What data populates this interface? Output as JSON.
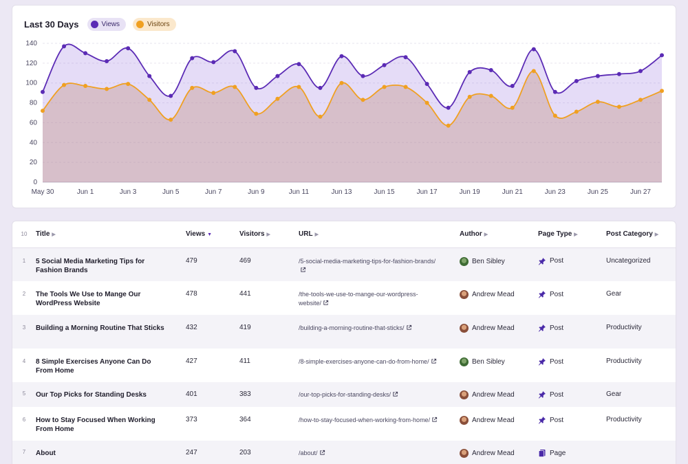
{
  "chart": {
    "title": "Last 30 Days",
    "legend": [
      {
        "label": "Views",
        "color": "#5b2bb5"
      },
      {
        "label": "Visitors",
        "color": "#f0a021"
      }
    ]
  },
  "chart_data": {
    "type": "area",
    "title": "Last 30 Days",
    "x": [
      "May 30",
      "May 31",
      "Jun 1",
      "Jun 2",
      "Jun 3",
      "Jun 4",
      "Jun 5",
      "Jun 6",
      "Jun 7",
      "Jun 8",
      "Jun 9",
      "Jun 10",
      "Jun 11",
      "Jun 12",
      "Jun 13",
      "Jun 14",
      "Jun 15",
      "Jun 16",
      "Jun 17",
      "Jun 18",
      "Jun 19",
      "Jun 20",
      "Jun 21",
      "Jun 22",
      "Jun 23",
      "Jun 24",
      "Jun 25",
      "Jun 26",
      "Jun 27",
      "Jun 28"
    ],
    "x_tick_labels": [
      "May 30",
      "Jun 1",
      "Jun 3",
      "Jun 5",
      "Jun 7",
      "Jun 9",
      "Jun 11",
      "Jun 13",
      "Jun 15",
      "Jun 17",
      "Jun 19",
      "Jun 21",
      "Jun 23",
      "Jun 25",
      "Jun 27"
    ],
    "y_ticks": [
      0,
      20,
      40,
      60,
      80,
      100,
      120,
      140
    ],
    "ylim": [
      0,
      140
    ],
    "grid": true,
    "legend_position": "top-left",
    "series": [
      {
        "name": "Views",
        "color": "#5b2bb5",
        "values": [
          91,
          137,
          130,
          122,
          135,
          107,
          87,
          125,
          121,
          132,
          95,
          107,
          119,
          95,
          127,
          107,
          118,
          126,
          99,
          75,
          111,
          113,
          97,
          134,
          91,
          102,
          107,
          109,
          112,
          128
        ]
      },
      {
        "name": "Visitors",
        "color": "#f0a021",
        "values": [
          72,
          98,
          97,
          94,
          99,
          83,
          63,
          95,
          90,
          96,
          69,
          84,
          96,
          66,
          100,
          83,
          96,
          96,
          80,
          57,
          86,
          87,
          75,
          112,
          67,
          71,
          81,
          76,
          83,
          92
        ]
      }
    ]
  },
  "table": {
    "count_label": "10",
    "columns": {
      "title": "Title",
      "views": "Views",
      "visitors": "Visitors",
      "url": "URL",
      "author": "Author",
      "page_type": "Page Type",
      "post_category": "Post Category"
    },
    "rows": [
      {
        "rank": "1",
        "title": "5 Social Media Marketing Tips for Fashion Brands",
        "views": "479",
        "visitors": "469",
        "url": "/5-social-media-marketing-tips-for-fashion-brands/",
        "author": "Ben Sibley",
        "page_type": "Post",
        "category": "Uncategorized"
      },
      {
        "rank": "2",
        "title": "The Tools We Use to Mange Our WordPress Website",
        "views": "478",
        "visitors": "441",
        "url": "/the-tools-we-use-to-mange-our-wordpress-website/",
        "author": "Andrew Mead",
        "page_type": "Post",
        "category": "Gear"
      },
      {
        "rank": "3",
        "title": "Building a Morning Routine That Sticks",
        "views": "432",
        "visitors": "419",
        "url": "/building-a-morning-routine-that-sticks/",
        "author": "Andrew Mead",
        "page_type": "Post",
        "category": "Productivity"
      },
      {
        "rank": "4",
        "title": "8 Simple Exercises Anyone Can Do From Home",
        "views": "427",
        "visitors": "411",
        "url": "/8-simple-exercises-anyone-can-do-from-home/",
        "author": "Ben Sibley",
        "page_type": "Post",
        "category": "Productivity"
      },
      {
        "rank": "5",
        "title": "Our Top Picks for Standing Desks",
        "views": "401",
        "visitors": "383",
        "url": "/our-top-picks-for-standing-desks/",
        "author": "Andrew Mead",
        "page_type": "Post",
        "category": "Gear"
      },
      {
        "rank": "6",
        "title": "How to Stay Focused When Working From Home",
        "views": "373",
        "visitors": "364",
        "url": "/how-to-stay-focused-when-working-from-home/",
        "author": "Andrew Mead",
        "page_type": "Post",
        "category": "Productivity"
      },
      {
        "rank": "7",
        "title": "About",
        "views": "247",
        "visitors": "203",
        "url": "/about/",
        "author": "Andrew Mead",
        "page_type": "Page",
        "category": ""
      }
    ]
  }
}
